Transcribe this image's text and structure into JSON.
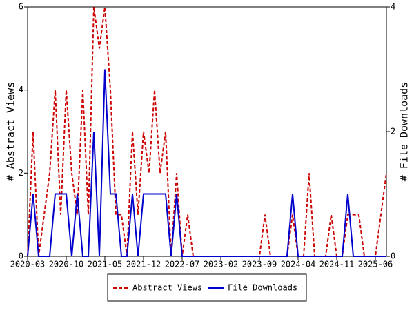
{
  "chart_data": {
    "type": "line",
    "y_label": "# Abstract Views",
    "y2_label": "# File Downloads",
    "categories": [
      "2020-03",
      null,
      null,
      null,
      null,
      null,
      null,
      "2020-10",
      null,
      null,
      null,
      null,
      null,
      null,
      "2021-05",
      null,
      null,
      null,
      null,
      null,
      null,
      "2021-12",
      null,
      null,
      null,
      null,
      null,
      null,
      "2022-07",
      null,
      null,
      null,
      null,
      null,
      null,
      "2023-02",
      null,
      null,
      null,
      null,
      null,
      null,
      "2023-09",
      null,
      null,
      null,
      null,
      null,
      null,
      "2024-04",
      null,
      null,
      null,
      null,
      null,
      null,
      "2024-11",
      null,
      null,
      null,
      null,
      null,
      null,
      "2025-06",
      null,
      null
    ],
    "ylim": [
      0,
      6
    ],
    "yticks": [
      0,
      2,
      4,
      6
    ],
    "y2lim": [
      0,
      4
    ],
    "y2ticks": [
      0,
      2,
      4
    ],
    "legend": "bottom",
    "series": [
      {
        "name": "Abstract Views",
        "color": "#cc0000",
        "dash": true,
        "values": [
          0,
          3,
          0,
          1,
          2,
          4,
          1,
          4,
          2,
          1,
          4,
          1,
          6,
          5,
          6,
          4,
          1,
          1,
          0,
          3,
          1,
          3,
          2,
          4,
          2,
          3,
          0,
          2,
          0,
          1,
          0,
          0,
          0,
          0,
          0,
          0,
          0,
          0,
          0,
          0,
          0,
          0,
          0,
          1,
          0,
          0,
          0,
          0,
          1,
          0,
          0,
          2,
          0,
          0,
          0,
          1,
          0,
          0,
          1,
          1,
          1,
          0,
          0,
          0,
          1,
          2
        ]
      },
      {
        "name": "File Downloads",
        "color": "#0000cc",
        "axis": "y2",
        "values": [
          0,
          1,
          0,
          0,
          0,
          1,
          1,
          1,
          0,
          1,
          0,
          0,
          2,
          0,
          3,
          1,
          1,
          0,
          0,
          1,
          0,
          1,
          1,
          1,
          1,
          1,
          0,
          1,
          0,
          0,
          0,
          0,
          0,
          0,
          0,
          0,
          0,
          0,
          0,
          0,
          0,
          0,
          0,
          0,
          0,
          0,
          0,
          0,
          1,
          0,
          0,
          0,
          0,
          0,
          0,
          0,
          0,
          0,
          1,
          0,
          0,
          0,
          0,
          0,
          0,
          0
        ]
      }
    ]
  }
}
